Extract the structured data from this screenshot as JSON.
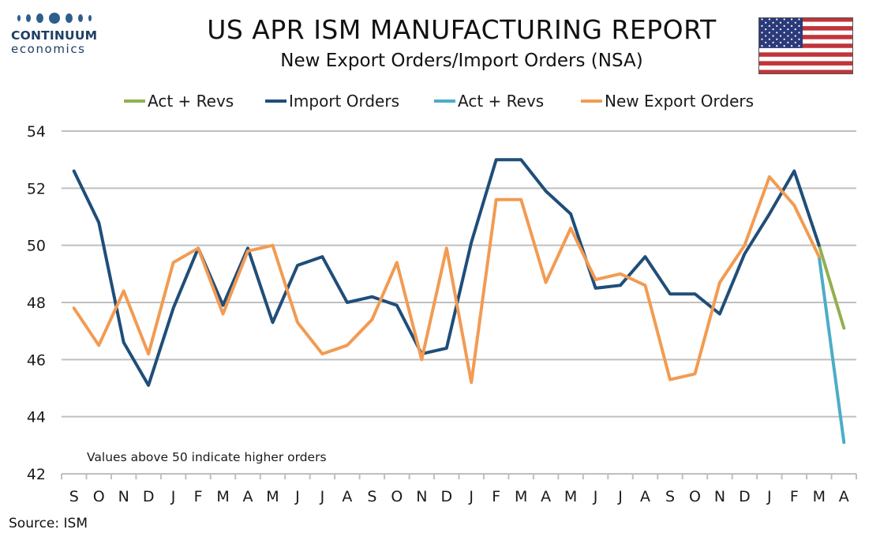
{
  "logo": {
    "name": "CONTINUUM",
    "sub": "economics"
  },
  "header": {
    "title": "US APR ISM MANUFACTURING REPORT",
    "subtitle": "New Export Orders/Import Orders (NSA)"
  },
  "flag": {
    "name": "us-flag-icon"
  },
  "source": "Source: ISM",
  "colors": {
    "import_orders": "#1f4e79",
    "new_export_orders": "#f29b52",
    "act_revs_green": "#92b04f",
    "act_revs_blue": "#4badc6",
    "grid": "#bfbfbf"
  },
  "chart_data": {
    "type": "line",
    "categories": [
      "S",
      "O",
      "N",
      "D",
      "J",
      "F",
      "M",
      "A",
      "M",
      "J",
      "J",
      "A",
      "S",
      "O",
      "N",
      "D",
      "J",
      "F",
      "M",
      "A",
      "M",
      "J",
      "J",
      "A",
      "S",
      "O",
      "N",
      "D",
      "J",
      "F",
      "M",
      "A"
    ],
    "ylim": [
      42,
      54
    ],
    "yticks": [
      42,
      44,
      46,
      48,
      50,
      52,
      54
    ],
    "grid": true,
    "legend": "top",
    "annotation": "Values above 50 indicate higher orders",
    "series": [
      {
        "name": "Act + Revs",
        "color": "#92b04f",
        "values": [
          null,
          null,
          null,
          null,
          null,
          null,
          null,
          null,
          null,
          null,
          null,
          null,
          null,
          null,
          null,
          null,
          null,
          null,
          null,
          null,
          null,
          null,
          null,
          null,
          null,
          null,
          null,
          null,
          null,
          null,
          50.0,
          47.1
        ]
      },
      {
        "name": "Import Orders",
        "color": "#1f4e79",
        "values": [
          52.6,
          50.8,
          46.6,
          45.1,
          47.8,
          49.9,
          47.9,
          49.9,
          47.3,
          49.3,
          49.6,
          48.0,
          48.2,
          47.9,
          46.2,
          46.4,
          50.1,
          53.0,
          53.0,
          51.9,
          51.1,
          48.5,
          48.6,
          49.6,
          48.3,
          48.3,
          47.6,
          49.7,
          51.1,
          52.6,
          50.0,
          null
        ]
      },
      {
        "name": "Act  + Revs",
        "color": "#4badc6",
        "values": [
          null,
          null,
          null,
          null,
          null,
          null,
          null,
          null,
          null,
          null,
          null,
          null,
          null,
          null,
          null,
          null,
          null,
          null,
          null,
          null,
          null,
          null,
          null,
          null,
          null,
          null,
          null,
          null,
          null,
          null,
          49.6,
          43.1
        ]
      },
      {
        "name": "New Export Orders",
        "color": "#f29b52",
        "values": [
          47.8,
          46.5,
          48.4,
          46.2,
          49.4,
          49.9,
          47.6,
          49.8,
          50.0,
          47.3,
          46.2,
          46.5,
          47.4,
          49.4,
          46.0,
          49.9,
          45.2,
          51.6,
          51.6,
          48.7,
          50.6,
          48.8,
          49.0,
          48.6,
          45.3,
          45.5,
          48.7,
          50.0,
          52.4,
          51.4,
          49.6,
          null
        ]
      }
    ]
  }
}
